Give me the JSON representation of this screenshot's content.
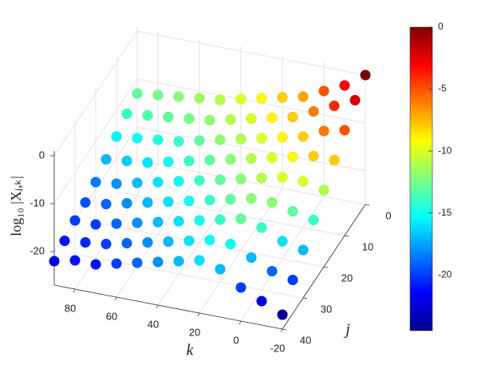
{
  "chart_data": {
    "type": "scatter3d",
    "xlabel": "k",
    "ylabel": "j",
    "zlabel": "log₁₀ |Xⱼ,ₖ|",
    "k": [
      -20,
      -10,
      0,
      10,
      20,
      30,
      40,
      50,
      60,
      70,
      80,
      90
    ],
    "j": [
      0,
      5,
      10,
      15,
      20,
      25,
      30,
      35,
      40
    ],
    "z": [
      [
        0,
        -3,
        -5,
        -7,
        -8,
        -9,
        -10,
        -11,
        -11.5,
        -12,
        -12.5,
        -13
      ],
      [
        -2,
        -4,
        -6,
        -8,
        -9,
        -10,
        -11,
        -12,
        -12.5,
        -13,
        -13.5,
        -14
      ],
      [
        -5,
        -6,
        -8,
        -9,
        -10,
        -11,
        -12,
        -13,
        -14,
        -14.5,
        -15,
        -15.5
      ],
      [
        -8,
        -8,
        -9,
        -10,
        -11,
        -12,
        -13,
        -14,
        -15,
        -16,
        -16.5,
        -17
      ],
      [
        -11,
        -10,
        -10,
        -11,
        -12,
        -13,
        -14,
        -15,
        -16,
        -17,
        -18,
        -18.5
      ],
      [
        -14,
        -13,
        -12,
        -12,
        -13,
        -14,
        -15,
        -16,
        -17,
        -18,
        -19,
        -19.5
      ],
      [
        -17,
        -16,
        -14,
        -13,
        -14,
        -15,
        -16,
        -17,
        -18,
        -19,
        -20,
        -20
      ],
      [
        -20,
        -19,
        -17,
        -15,
        -15,
        -16,
        -17,
        -18,
        -19,
        -20,
        -20.5,
        -21
      ],
      [
        -24,
        -22,
        -20,
        -17,
        -16,
        -17,
        -18,
        -19,
        -20,
        -21,
        -21,
        -22
      ]
    ],
    "xlim": [
      -20,
      90
    ],
    "xticks": [
      -20,
      0,
      20,
      40,
      60,
      80
    ],
    "ylim": [
      0,
      40
    ],
    "yticks": [
      0,
      10,
      20,
      30,
      40
    ],
    "zlim": [
      -27,
      1
    ],
    "zticks": [
      -20,
      -10,
      0
    ],
    "clim": [
      -24.5,
      0
    ],
    "cticks": [
      -20,
      -15,
      -10,
      -5,
      0
    ],
    "colormap": "jet",
    "grid": true
  }
}
